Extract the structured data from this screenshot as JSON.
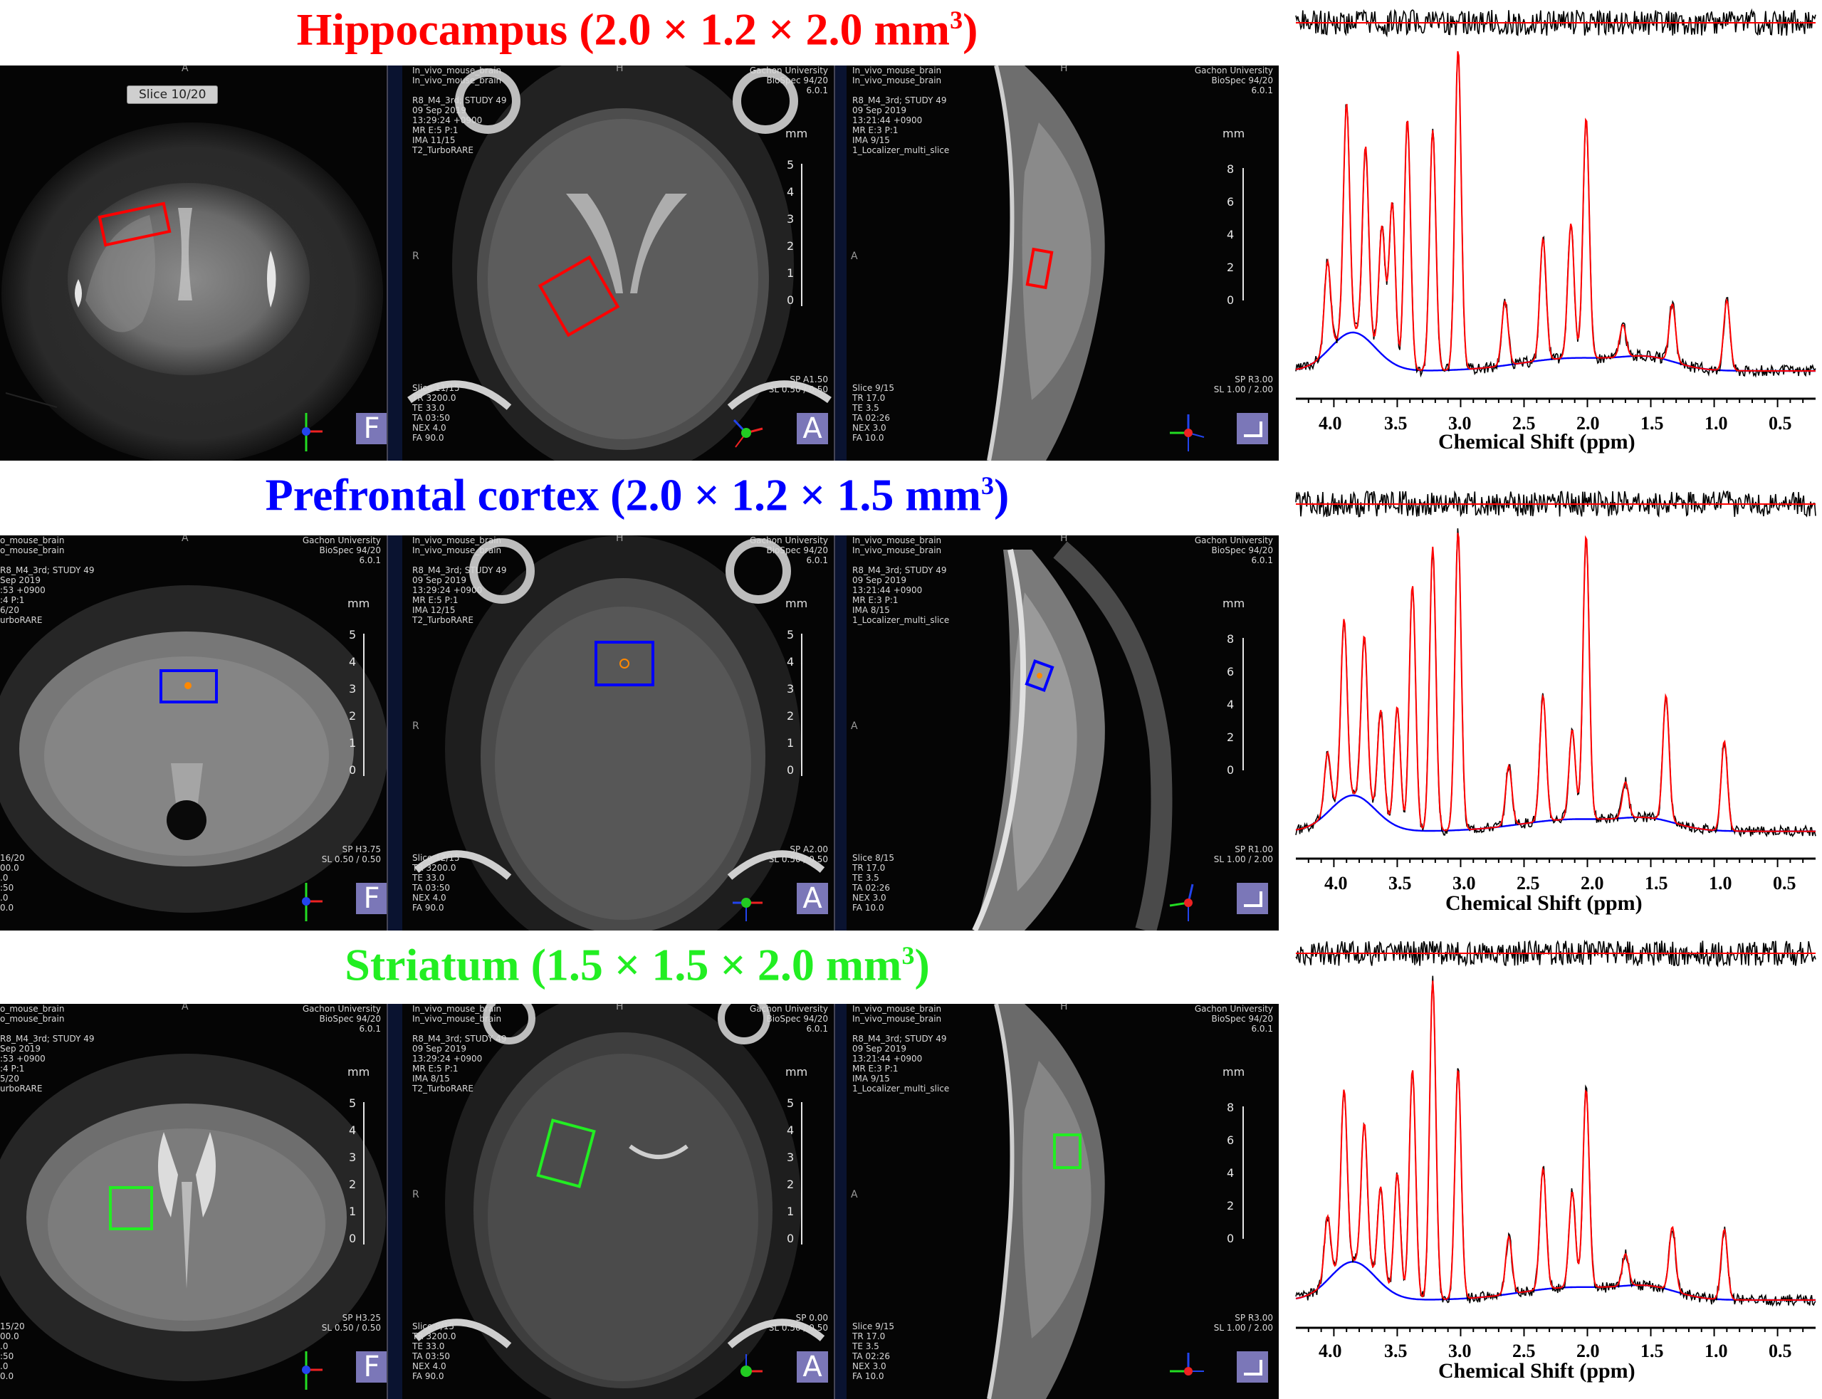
{
  "rows": [
    {
      "title": "Hippocampus (2.0 × 1.2 × 2.0 mm",
      "title_sup": "3",
      "title_tail": ")",
      "color": "#ff0000",
      "slice_button": "Slice 10/20",
      "coronal_footer": "",
      "axial_header_left": "In_vivo_mouse_brain\nIn_vivo_mouse_brain\n\nR8_M4_3rd; STUDY 49\n09 Sep 2019\n13:29:24 +0900\nMR E:5 P:1\nIMA 11/15\nT2_TurboRARE",
      "axial_header_right": "Gachon University\nBioSpec 94/20\n6.0.1",
      "axial_footer_left": "Slice 11/15\nTR 3200.0\nTE 33.0\nTA 03:50\nNEX 4.0\nFA 90.0",
      "axial_footer_right": "SP A1.50\nSL 0.50 / 0.50",
      "sag_header_left": "In_vivo_mouse_brain\nIn_vivo_mouse_brain\n\nR8_M4_3rd; STUDY 49\n09 Sep 2019\n13:21:44 +0900\nMR E:3 P:1\nIMA 9/15\n1_Localizer_multi_slice",
      "sag_header_right": "Gachon University\nBioSpec 94/20\n6.0.1",
      "sag_footer_left": "Slice 9/15\nTR 17.0\nTE 3.5\nTA 02:26\nNEX 3.0\nFA 10.0",
      "sag_footer_right": "SP R3.00\nSL 1.00 / 2.00",
      "coronal_header_right": "",
      "coronal_header_left": "",
      "coronal_footer_right": ""
    },
    {
      "title": "Prefrontal cortex (2.0 × 1.2 × 1.5 mm",
      "title_sup": "3",
      "title_tail": ")",
      "color": "#0000ff",
      "slice_button": "",
      "coronal_header_left": "o_mouse_brain\no_mouse_brain\n\nR8_M4_3rd; STUDY 49\nSep 2019\n:53 +0900\n:4 P:1\n6/20\nurboRARE",
      "coronal_header_right": "Gachon University\nBioSpec 94/20\n6.0.1",
      "coronal_footer": "16/20\n00.0\n.0\n:50\n.0\n0.0",
      "coronal_footer_right": "SP H3.75\nSL 0.50 / 0.50",
      "axial_header_left": "In_vivo_mouse_brain\nIn_vivo_mouse_brain\n\nR8_M4_3rd; STUDY 49\n09 Sep 2019\n13:29:24 +0900\nMR E:5 P:1\nIMA 12/15\nT2_TurboRARE",
      "axial_header_right": "Gachon University\nBioSpec 94/20\n6.0.1",
      "axial_footer_left": "Slice 12/15\nTR 3200.0\nTE 33.0\nTA 03:50\nNEX 4.0\nFA 90.0",
      "axial_footer_right": "SP A2.00\nSL 0.50 / 0.50",
      "sag_header_left": "In_vivo_mouse_brain\nIn_vivo_mouse_brain\n\nR8_M4_3rd; STUDY 49\n09 Sep 2019\n13:21:44 +0900\nMR E:3 P:1\nIMA 8/15\n1_Localizer_multi_slice",
      "sag_header_right": "Gachon University\nBioSpec 94/20\n6.0.1",
      "sag_footer_left": "Slice 8/15\nTR 17.0\nTE 3.5\nTA 02:26\nNEX 3.0\nFA 10.0",
      "sag_footer_right": "SP R1.00\nSL 1.00 / 2.00"
    },
    {
      "title": "Striatum (1.5 × 1.5 × 2.0 mm",
      "title_sup": "3",
      "title_tail": ")",
      "color": "#22ee22",
      "slice_button": "",
      "coronal_header_left": "o_mouse_brain\no_mouse_brain\n\nR8_M4_3rd; STUDY 49\nSep 2019\n:53 +0900\n:4 P:1\n5/20\nurboRARE",
      "coronal_header_right": "Gachon University\nBioSpec 94/20\n6.0.1",
      "coronal_footer": "15/20\n00.0\n.0\n:50\n.0\n0.0",
      "coronal_footer_right": "SP H3.25\nSL 0.50 / 0.50",
      "axial_header_left": "In_vivo_mouse_brain\nIn_vivo_mouse_brain\n\nR8_M4_3rd; STUDY 49\n09 Sep 2019\n13:29:24 +0900\nMR E:5 P:1\nIMA 8/15\nT2_TurboRARE",
      "axial_header_right": "Gachon University\nBioSpec 94/20\n6.0.1",
      "axial_footer_left": "Slice 8/15\nTR 3200.0\nTE 33.0\nTA 03:50\nNEX 4.0\nFA 90.0",
      "axial_footer_right": "SP 0.00\nSL 0.50 / 0.50",
      "sag_header_left": "In_vivo_mouse_brain\nIn_vivo_mouse_brain\n\nR8_M4_3rd; STUDY 49\n09 Sep 2019\n13:21:44 +0900\nMR E:3 P:1\nIMA 9/15\n1_Localizer_multi_slice",
      "sag_header_right": "Gachon University\nBioSpec 94/20\n6.0.1",
      "sag_footer_left": "Slice 9/15\nTR 17.0\nTE 3.5\nTA 02:26\nNEX 3.0\nFA 10.0",
      "sag_footer_right": "SP R3.00\nSL 1.00 / 2.00"
    }
  ],
  "orientation_labels": {
    "top": "A",
    "top_hf": "H",
    "left_r": "R",
    "left_a": "A"
  },
  "mm_label": "mm",
  "scale_5": [
    "5",
    "4",
    "3",
    "2",
    "1",
    "0"
  ],
  "scale_8": [
    "8",
    "6",
    "4",
    "2",
    "0"
  ],
  "view_badges": {
    "coronal": "F",
    "axial": "A"
  },
  "icons": [
    "orientation-axes-icon",
    "sagittal-view-icon"
  ],
  "spectrum": {
    "xlabel": "Chemical Shift (ppm)",
    "ticks": [
      "4.0",
      "3.5",
      "3.0",
      "2.5",
      "2.0",
      "1.5",
      "1.0",
      "0.5"
    ],
    "colors": {
      "data": "#000000",
      "fit": "#ff0000",
      "baseline": "#0000ff"
    }
  },
  "chart_data": [
    {
      "type": "line",
      "title": "Hippocampus",
      "xlabel": "Chemical Shift (ppm)",
      "xlim": [
        4.3,
        0.2
      ],
      "peaks": [
        {
          "ppm": 4.05,
          "amp": 0.28
        },
        {
          "ppm": 3.9,
          "amp": 0.72
        },
        {
          "ppm": 3.75,
          "amp": 0.6
        },
        {
          "ppm": 3.62,
          "amp": 0.4
        },
        {
          "ppm": 3.54,
          "amp": 0.5
        },
        {
          "ppm": 3.42,
          "amp": 0.78
        },
        {
          "ppm": 3.22,
          "amp": 0.75
        },
        {
          "ppm": 3.02,
          "amp": 1.0
        },
        {
          "ppm": 2.65,
          "amp": 0.2
        },
        {
          "ppm": 2.35,
          "amp": 0.38
        },
        {
          "ppm": 2.13,
          "amp": 0.42
        },
        {
          "ppm": 2.01,
          "amp": 0.75
        },
        {
          "ppm": 1.72,
          "amp": 0.1
        },
        {
          "ppm": 1.33,
          "amp": 0.18
        },
        {
          "ppm": 0.9,
          "amp": 0.22
        }
      ],
      "baseline_hump": {
        "ppm": 3.85,
        "amp": 0.12
      }
    },
    {
      "type": "line",
      "title": "Prefrontal cortex",
      "xlabel": "Chemical Shift (ppm)",
      "xlim": [
        4.3,
        0.2
      ],
      "peaks": [
        {
          "ppm": 4.05,
          "amp": 0.2
        },
        {
          "ppm": 3.92,
          "amp": 0.6
        },
        {
          "ppm": 3.76,
          "amp": 0.55
        },
        {
          "ppm": 3.63,
          "amp": 0.35
        },
        {
          "ppm": 3.5,
          "amp": 0.4
        },
        {
          "ppm": 3.38,
          "amp": 0.82
        },
        {
          "ppm": 3.22,
          "amp": 0.95
        },
        {
          "ppm": 3.02,
          "amp": 1.0
        },
        {
          "ppm": 2.62,
          "amp": 0.2
        },
        {
          "ppm": 2.35,
          "amp": 0.42
        },
        {
          "ppm": 2.12,
          "amp": 0.3
        },
        {
          "ppm": 2.01,
          "amp": 0.95
        },
        {
          "ppm": 1.7,
          "amp": 0.12
        },
        {
          "ppm": 1.38,
          "amp": 0.42
        },
        {
          "ppm": 0.92,
          "amp": 0.3
        }
      ],
      "baseline_hump": {
        "ppm": 3.85,
        "amp": 0.12
      }
    },
    {
      "type": "line",
      "title": "Striatum",
      "xlabel": "Chemical Shift (ppm)",
      "xlim": [
        4.3,
        0.2
      ],
      "peaks": [
        {
          "ppm": 4.05,
          "amp": 0.2
        },
        {
          "ppm": 3.92,
          "amp": 0.55
        },
        {
          "ppm": 3.76,
          "amp": 0.45
        },
        {
          "ppm": 3.63,
          "amp": 0.3
        },
        {
          "ppm": 3.5,
          "amp": 0.38
        },
        {
          "ppm": 3.38,
          "amp": 0.72
        },
        {
          "ppm": 3.22,
          "amp": 1.0
        },
        {
          "ppm": 3.02,
          "amp": 0.72
        },
        {
          "ppm": 2.62,
          "amp": 0.18
        },
        {
          "ppm": 2.35,
          "amp": 0.38
        },
        {
          "ppm": 2.12,
          "amp": 0.3
        },
        {
          "ppm": 2.01,
          "amp": 0.62
        },
        {
          "ppm": 1.7,
          "amp": 0.1
        },
        {
          "ppm": 1.33,
          "amp": 0.2
        },
        {
          "ppm": 0.92,
          "amp": 0.22
        }
      ],
      "baseline_hump": {
        "ppm": 3.85,
        "amp": 0.12
      }
    }
  ]
}
